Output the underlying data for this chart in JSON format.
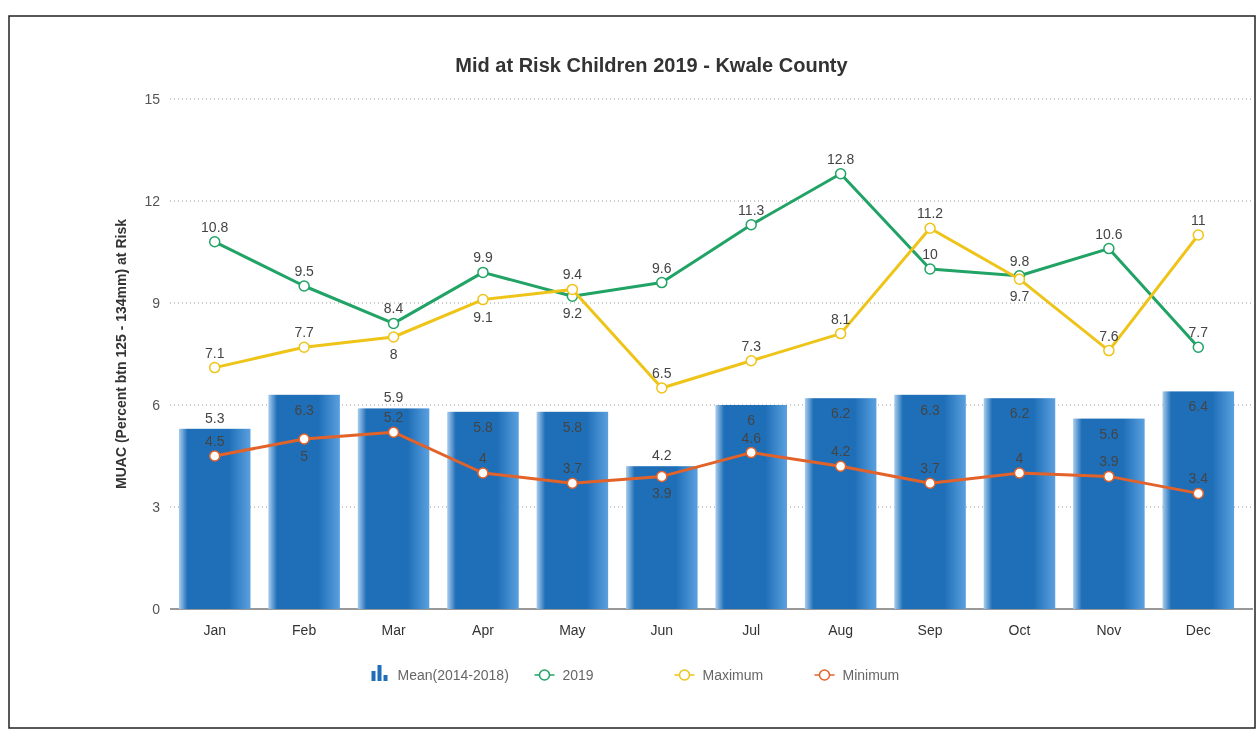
{
  "chart_data": {
    "type": "bar",
    "title": "Mid at Risk Children 2019 - Kwale County",
    "ylabel": "MUAC (Percent btn 125 - 134mm) at Risk",
    "categories": [
      "Jan",
      "Feb",
      "Mar",
      "Apr",
      "May",
      "Jun",
      "Jul",
      "Aug",
      "Sep",
      "Oct",
      "Nov",
      "Dec"
    ],
    "series": [
      {
        "name": "Mean(2014-2018)",
        "color": "#1f6fb8",
        "values": [
          5.3,
          6.3,
          5.9,
          5.8,
          5.8,
          4.2,
          6,
          6.2,
          6.3,
          6.2,
          5.6,
          6.4
        ]
      },
      {
        "name": "2019",
        "type": "line",
        "color": "#21a366",
        "values": [
          10.8,
          9.5,
          8.4,
          9.9,
          9.2,
          9.6,
          11.3,
          12.8,
          10,
          9.8,
          10.6,
          7.7
        ]
      },
      {
        "name": "Maximum",
        "type": "line",
        "color": "#eec418",
        "values": [
          7.1,
          7.7,
          8,
          9.1,
          9.4,
          6.5,
          7.3,
          8.1,
          11.2,
          9.7,
          7.6,
          11
        ]
      },
      {
        "name": "Minimum",
        "type": "line",
        "color": "#e2622a",
        "values": [
          4.5,
          5,
          5.2,
          4,
          3.7,
          3.9,
          4.6,
          4.2,
          3.7,
          4,
          3.9,
          3.4
        ]
      }
    ],
    "ylim": [
      0,
      15
    ],
    "yticks": [
      0,
      3,
      6,
      9,
      12,
      15
    ],
    "grid": "y",
    "legend": "bottom",
    "marker": "circle",
    "data_labels": true
  }
}
